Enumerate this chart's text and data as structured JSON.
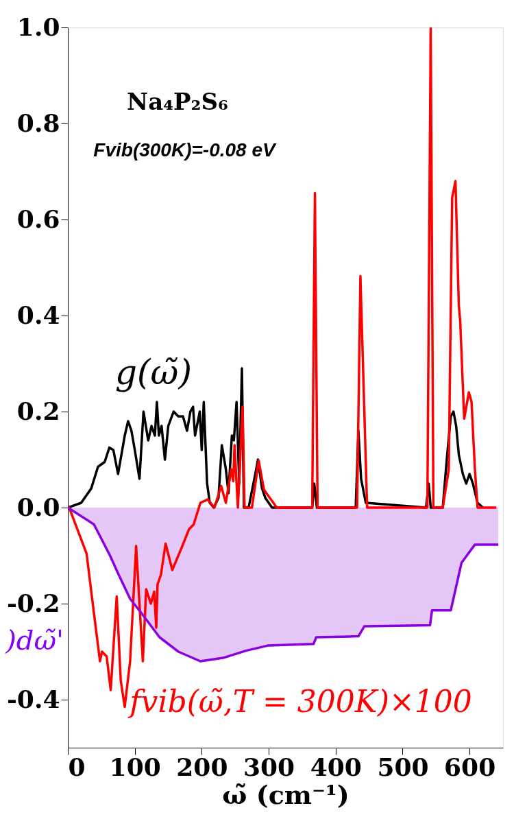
{
  "chart_data": {
    "type": "line",
    "xlabel": "ω̃ (cm⁻¹)",
    "annotations": [
      "Na₄P₂S₆",
      "Fvib(300K)=-0.08 eV",
      "g(ω̃)",
      "fvib(ω̃,T = 300K)×100",
      ")dω̃'"
    ],
    "series": [
      {
        "color": "#000000",
        "x": [
          0,
          20,
          35,
          45,
          55,
          62,
          68,
          75,
          85,
          90,
          95,
          100,
          107,
          113,
          120,
          125,
          130,
          133,
          136,
          140,
          145,
          150,
          158,
          165,
          172,
          178,
          183,
          187,
          190,
          197,
          200,
          203,
          208,
          212,
          218,
          225,
          230,
          236,
          240,
          245,
          248,
          252,
          256,
          260,
          263,
          270,
          280,
          284,
          290,
          295,
          305,
          365,
          368,
          372,
          430,
          434,
          438,
          445,
          535,
          539,
          542,
          560,
          566,
          572,
          576,
          580,
          584,
          590,
          595,
          600,
          605,
          612,
          620
        ],
        "values": [
          0,
          0.01,
          0.04,
          0.085,
          0.095,
          0.125,
          0.12,
          0.07,
          0.15,
          0.18,
          0.16,
          0.12,
          0.06,
          0.2,
          0.14,
          0.17,
          0.15,
          0.22,
          0.15,
          0.17,
          0.1,
          0.17,
          0.2,
          0.19,
          0.19,
          0.16,
          0.2,
          0.21,
          0.15,
          0.2,
          0.12,
          0.22,
          0.05,
          0.01,
          0,
          0.02,
          0.13,
          0.08,
          0.03,
          0.15,
          0.14,
          0.22,
          0.05,
          0.29,
          0,
          0,
          0.07,
          0.1,
          0.04,
          0.02,
          0,
          0,
          0.05,
          0,
          0,
          0.16,
          0.06,
          0.01,
          0,
          0.05,
          0,
          0,
          0.1,
          0.19,
          0.2,
          0.17,
          0.11,
          0.07,
          0.05,
          0.07,
          0.05,
          0.01,
          0
        ]
      },
      {
        "color": "#ff0000",
        "x": [
          0,
          2,
          28,
          39,
          48,
          51,
          58,
          64,
          73,
          79,
          85,
          93,
          102,
          112,
          117,
          124,
          129,
          132,
          134,
          139,
          146,
          156,
          165,
          171,
          181,
          188,
          198,
          209,
          219,
          229,
          236,
          244,
          247,
          249,
          254,
          261,
          264,
          275,
          285,
          293,
          307,
          312,
          365,
          369,
          373,
          432,
          437,
          447,
          537,
          542,
          546,
          560,
          569,
          574,
          579,
          584,
          586,
          592,
          599,
          603,
          608,
          612,
          640
        ],
        "values": [
          0,
          0,
          -0.096,
          -0.22,
          -0.32,
          -0.3,
          -0.31,
          -0.38,
          -0.185,
          -0.36,
          -0.415,
          -0.32,
          -0.08,
          -0.32,
          -0.17,
          -0.2,
          -0.175,
          -0.25,
          -0.16,
          -0.14,
          -0.075,
          -0.13,
          -0.1,
          -0.08,
          -0.045,
          -0.035,
          0.01,
          0.017,
          0,
          0.045,
          0.01,
          0.08,
          0.055,
          0.13,
          0,
          0.21,
          0,
          0,
          0.098,
          0.037,
          0.01,
          0,
          0,
          0.655,
          0,
          0,
          0.482,
          0,
          0,
          1.0,
          0,
          0,
          0.08,
          0.645,
          0.68,
          0.42,
          0.39,
          0.185,
          0.24,
          0.22,
          0.08,
          0,
          0
        ]
      },
      {
        "type": "area",
        "color": "#8a00e0",
        "x": [
          0,
          39,
          63,
          76,
          93,
          110,
          137,
          165,
          198,
          232,
          266,
          300,
          367,
          371,
          434,
          443,
          541,
          544,
          572,
          588,
          608,
          643
        ],
        "values": [
          0,
          -0.035,
          -0.1,
          -0.14,
          -0.19,
          -0.22,
          -0.27,
          -0.3,
          -0.32,
          -0.313,
          -0.298,
          -0.287,
          -0.284,
          -0.27,
          -0.268,
          -0.247,
          -0.245,
          -0.214,
          -0.214,
          -0.115,
          -0.077,
          -0.077
        ]
      }
    ],
    "xlim": [
      0,
      650
    ],
    "xticks": [
      0,
      100,
      200,
      300,
      400,
      500,
      600
    ],
    "ylim": [
      -0.5,
      1.0
    ],
    "yticks": [
      {
        "value": -0.4,
        "label": "-0.4"
      },
      {
        "value": -0.2,
        "label": "-0.2"
      },
      {
        "value": 0,
        "label": "0.0"
      },
      {
        "value": 0.2,
        "label": "0.2"
      },
      {
        "value": 0.4,
        "label": "0.4"
      },
      {
        "value": 0.6,
        "label": "0.6"
      },
      {
        "value": 0.8,
        "label": "0.8"
      },
      {
        "value": 1.0,
        "label": "1.0"
      }
    ],
    "grid": false
  }
}
